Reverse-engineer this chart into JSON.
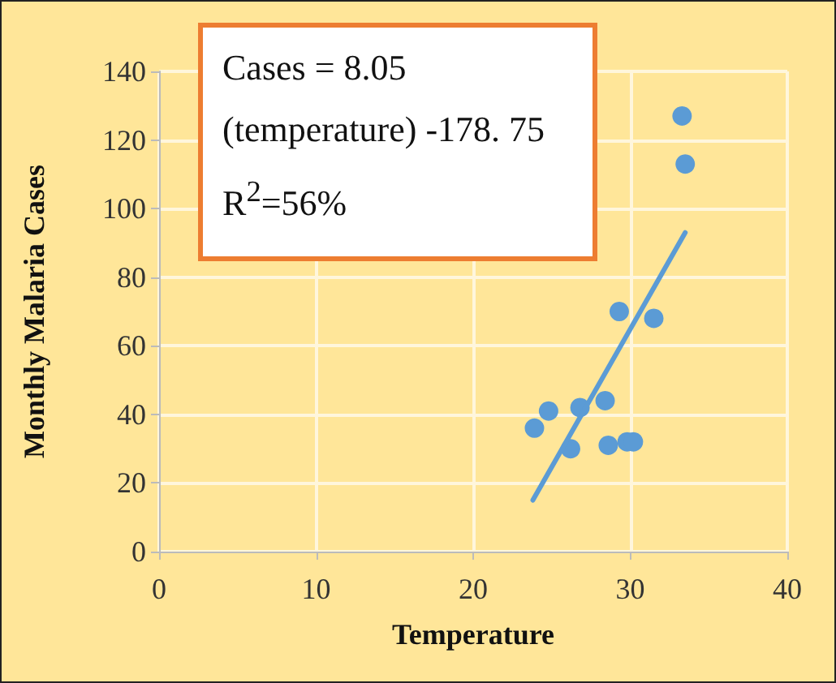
{
  "chart_data": {
    "type": "scatter",
    "xlabel": "Temperature",
    "ylabel": "Monthly Malaria Cases",
    "annotations": [
      "Cases = 8.05",
      "(temperature) -178. 75",
      "R$^{2}$=56%"
    ],
    "series": [
      {
        "color": "#5b9bd5",
        "marker": "circle",
        "x": [
          33.3,
          33.5,
          29.3,
          31.5,
          24.8,
          23.9,
          26.8,
          28.4,
          26.2,
          28.6,
          29.8,
          30.2
        ],
        "values": [
          127,
          113,
          70,
          68,
          41,
          36,
          42,
          44,
          30,
          31,
          32,
          32
        ]
      },
      {
        "type": "line",
        "marker": "none",
        "color": "#5b9bd5",
        "x": [
          23.8,
          33.5
        ],
        "values": [
          15,
          93
        ]
      }
    ],
    "xlim": [
      0,
      40
    ],
    "xticks": [
      0,
      10,
      20,
      30,
      40
    ],
    "ylim": [
      0,
      140
    ],
    "yticks": [
      0,
      20,
      40,
      60,
      80,
      100,
      120,
      140
    ],
    "grid": true
  }
}
